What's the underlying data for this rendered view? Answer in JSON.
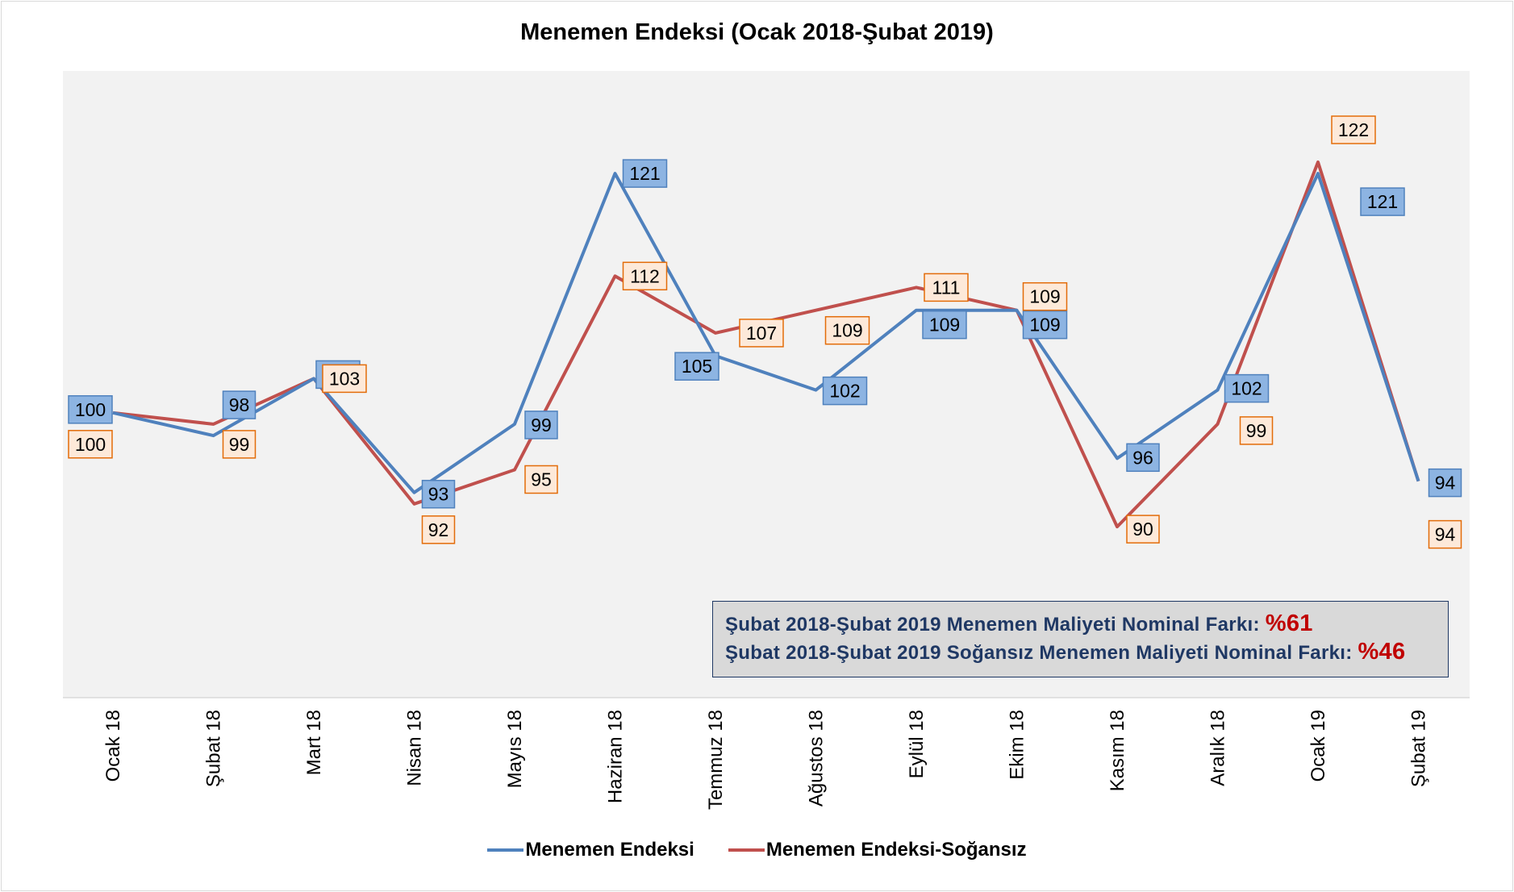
{
  "chart_data": {
    "type": "line",
    "title": "Menemen Endeksi (Ocak 2018-Şubat 2019)",
    "categories": [
      "Ocak 18",
      "Şubat 18",
      "Mart 18",
      "Nisan 18",
      "Mayıs 18",
      "Haziran 18",
      "Temmuz 18",
      "Ağustos 18",
      "Eylül 18",
      "Ekim 18",
      "Kasım 18",
      "Aralık 18",
      "Ocak 19",
      "Şubat 19"
    ],
    "series": [
      {
        "name": "Menemen Endeksi",
        "color": "#4f81bd",
        "label_fill": "#8db4e2",
        "label_border": "#4f81bd",
        "values": [
          100,
          98,
          103,
          93,
          99,
          121,
          105,
          102,
          109,
          109,
          96,
          102,
          121,
          94
        ]
      },
      {
        "name": "Menemen Endeksi-Soğansız",
        "color": "#c0504d",
        "label_fill": "#fde9d9",
        "label_border": "#e36c09",
        "values": [
          100,
          99,
          103,
          92,
          95,
          112,
          107,
          109,
          111,
          109,
          90,
          99,
          122,
          94
        ]
      }
    ],
    "ylim": [
      75,
      130
    ],
    "grid": false,
    "plot_background": "#f2f2f2",
    "legend_position": "bottom"
  },
  "note": {
    "line1_text": "Şubat 2018-Şubat 2019 Menemen Maliyeti Nominal Farkı:",
    "line1_value": "%61",
    "line2_text": "Şubat 2018-Şubat 2019 Soğansız Menemen Maliyeti Nominal Farkı:",
    "line2_value": "%46"
  }
}
